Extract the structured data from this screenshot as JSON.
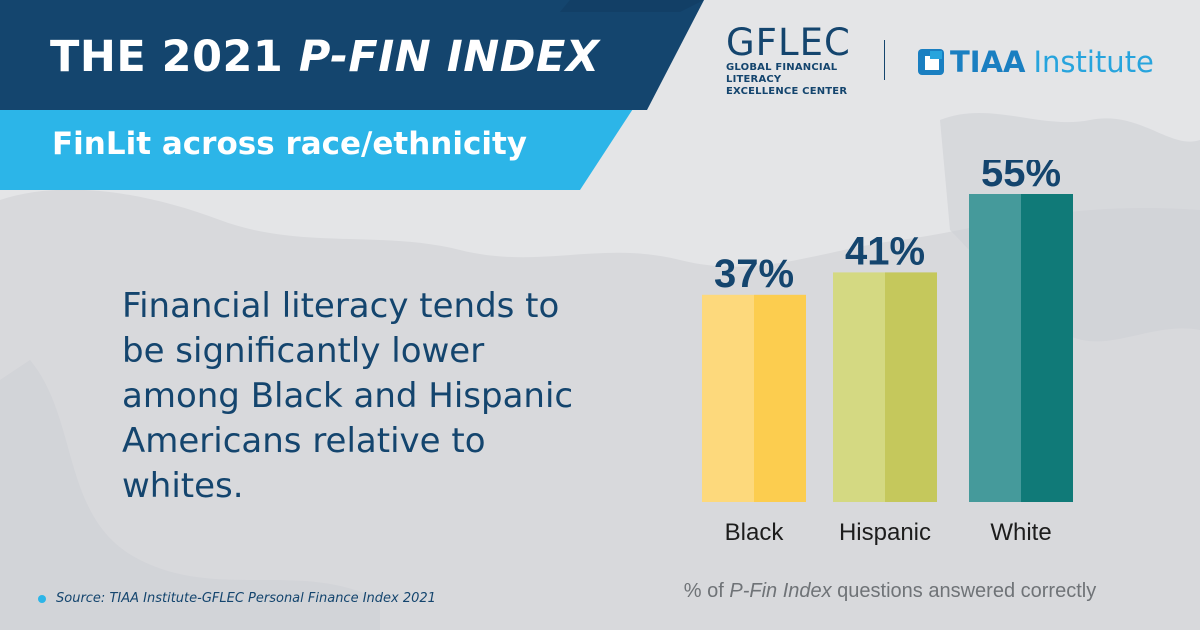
{
  "header": {
    "title_main": "THE 2021",
    "title_italic": "P-FIN INDEX",
    "subtitle": "FinLit across race/ethnicity"
  },
  "logos": {
    "gflec_name": "GFLEC",
    "gflec_line1": "GLOBAL FINANCIAL LITERACY",
    "gflec_line2": "EXCELLENCE CENTER",
    "tiaa_bold": "TIAA",
    "tiaa_light": "Institute"
  },
  "statement": "Financial literacy tends to be significantly lower among Black and Hispanic Americans relative to whites.",
  "source": "Source: TIAA Institute-GFLEC Personal Finance Index 2021",
  "colors": {
    "navy": "#14456e",
    "cyan": "#2cb5e8",
    "black_bar": [
      "#fdd97c",
      "#fccd4f"
    ],
    "hispanic_bar": [
      "#d4d982",
      "#c5c85c"
    ],
    "white_bar": [
      "#459a9b",
      "#107a78"
    ]
  },
  "chart_data": {
    "type": "bar",
    "categories": [
      "Black",
      "Hispanic",
      "White"
    ],
    "values": [
      37,
      41,
      55
    ],
    "value_labels": [
      "37%",
      "41%",
      "55%"
    ],
    "xlabel_parts": [
      "% of ",
      "P-Fin Index",
      " questions answered correctly"
    ],
    "ylabel": "",
    "ylim": [
      0,
      60
    ]
  }
}
